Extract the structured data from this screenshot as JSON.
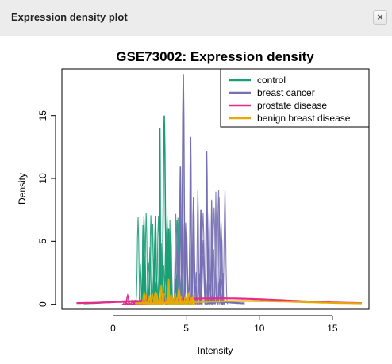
{
  "window": {
    "title": "Expression density plot",
    "close_icon": "×"
  },
  "chart_data": {
    "type": "line",
    "title": "GSE73002: Expression density",
    "xlabel": "Intensity",
    "ylabel": "Density",
    "xlim": [
      -3.5,
      17.5
    ],
    "ylim": [
      -0.4,
      18.7
    ],
    "xticks": [
      0,
      5,
      10,
      15
    ],
    "yticks": [
      0,
      5,
      10,
      15
    ],
    "legend_position": "top-right",
    "grid": false,
    "series": [
      {
        "name": "control",
        "color": "#1b9e77",
        "peaks": [
          {
            "x": 3.2,
            "y": 14.0
          },
          {
            "x": 3.5,
            "y": 15.0
          },
          {
            "x": 2.9,
            "y": 7.0
          },
          {
            "x": 3.8,
            "y": 6.0
          },
          {
            "x": 2.1,
            "y": 3.5
          },
          {
            "x": 3.9,
            "y": 3.3
          },
          {
            "x": 4.3,
            "y": 2.0
          }
        ],
        "range": [
          -2.0,
          5.0
        ]
      },
      {
        "name": "breast cancer",
        "color": "#7570b3",
        "peaks": [
          {
            "x": 4.8,
            "y": 18.3
          },
          {
            "x": 5.3,
            "y": 13.3
          },
          {
            "x": 6.4,
            "y": 12.2
          },
          {
            "x": 4.6,
            "y": 11.0
          },
          {
            "x": 5.5,
            "y": 8.5
          },
          {
            "x": 6.0,
            "y": 7.5
          },
          {
            "x": 5.0,
            "y": 6.5
          },
          {
            "x": 6.6,
            "y": 1.6
          },
          {
            "x": 7.3,
            "y": 2.0
          }
        ],
        "range": [
          4.0,
          9.0
        ]
      },
      {
        "name": "prostate disease",
        "color": "#e7298a",
        "peaks": [
          {
            "x": 1.0,
            "y": 0.7
          },
          {
            "x": 2.3,
            "y": 0.6
          }
        ],
        "range": [
          -2.5,
          17.0
        ]
      },
      {
        "name": "benign breast disease",
        "color": "#e6ab02",
        "peaks": [
          {
            "x": 3.8,
            "y": 2.0
          },
          {
            "x": 3.3,
            "y": 1.5
          },
          {
            "x": 4.5,
            "y": 1.2
          },
          {
            "x": 2.9,
            "y": 1.0
          },
          {
            "x": 5.2,
            "y": 0.9
          },
          {
            "x": 2.5,
            "y": 0.7
          }
        ],
        "range": [
          1.5,
          17.0
        ]
      }
    ]
  }
}
